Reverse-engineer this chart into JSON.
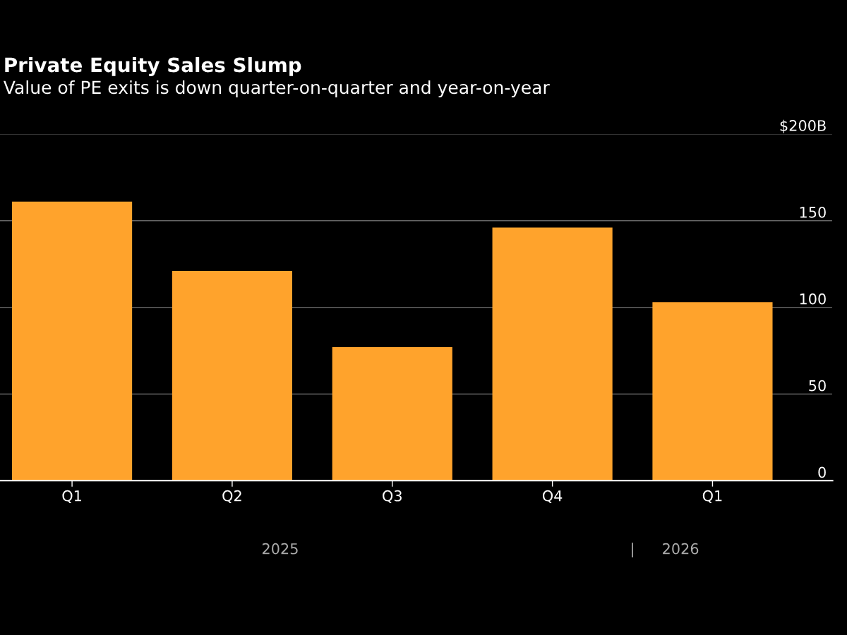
{
  "chart_data": {
    "type": "bar",
    "title": "Private Equity Sales Slump",
    "subtitle": "Value of PE exits is down quarter-on-quarter and year-on-year",
    "categories": [
      "Q1",
      "Q2",
      "Q3",
      "Q4",
      "Q1"
    ],
    "values": [
      161,
      121,
      77,
      146,
      103
    ],
    "color": "#ffa32c",
    "ylim": [
      0,
      200
    ],
    "yticks": [
      0,
      50,
      100,
      150,
      {
        "value": 200,
        "label": "$200B"
      }
    ],
    "grid": "y",
    "annotations": [
      "2025",
      "|",
      "2026"
    ]
  }
}
